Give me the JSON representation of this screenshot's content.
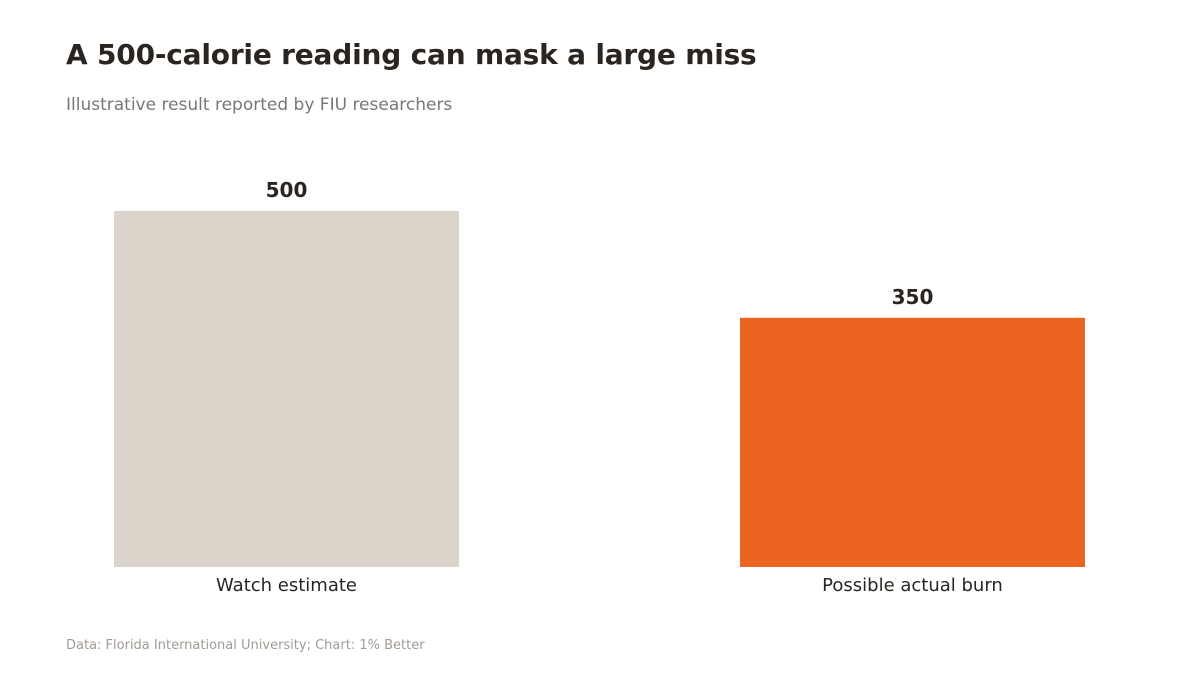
{
  "header": {
    "title": "A 500-calorie reading can mask a large miss",
    "subtitle": "Illustrative result reported by FIU researchers"
  },
  "footer": {
    "source": "Data: Florida International University; Chart: 1% Better"
  },
  "chart_data": {
    "type": "bar",
    "categories": [
      "Watch estimate",
      "Possible actual burn"
    ],
    "values": [
      500,
      350
    ],
    "value_labels": [
      "500",
      "350"
    ],
    "colors": [
      "#dad4ca",
      "#eb6421"
    ],
    "ylim": [
      0,
      500
    ],
    "grid": false,
    "legend": "none",
    "xlabel": "",
    "ylabel": ""
  }
}
